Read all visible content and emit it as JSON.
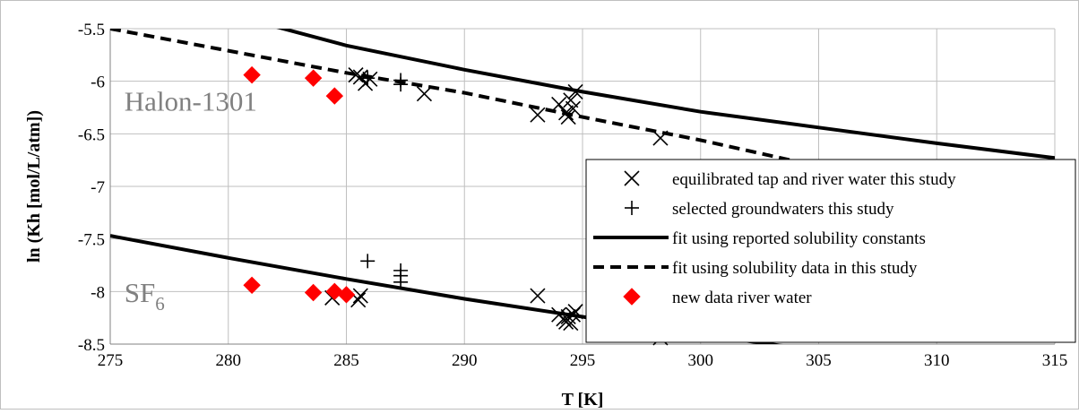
{
  "chart_data": {
    "type": "scatter",
    "xlabel": "T [K]",
    "ylabel": "ln (Kh [mol/L/atm])",
    "xlim": [
      275,
      315
    ],
    "ylim": [
      -8.5,
      -5.5
    ],
    "x_ticks": [
      275,
      280,
      285,
      290,
      295,
      300,
      305,
      310,
      315
    ],
    "y_ticks": [
      -5.5,
      -6,
      -6.5,
      -7,
      -7.5,
      -8,
      -8.5
    ],
    "grid": true,
    "legend_position": "right",
    "annotations": [
      {
        "id": "halon",
        "text": "Halon-1301",
        "x": 275.6,
        "y": -6.28
      },
      {
        "id": "sf6",
        "base": "SF",
        "sub": "6",
        "x": 275.6,
        "y": -8.1
      }
    ],
    "series": [
      {
        "id": "tap",
        "name": "equilibrated tap and river water this study",
        "marker": "x",
        "color": "#000000",
        "points": [
          [
            285.4,
            -5.94
          ],
          [
            285.6,
            -5.96
          ],
          [
            285.8,
            -6.02
          ],
          [
            286.0,
            -5.98
          ],
          [
            288.3,
            -6.12
          ],
          [
            293.1,
            -6.32
          ],
          [
            294.0,
            -6.22
          ],
          [
            294.3,
            -6.3
          ],
          [
            294.4,
            -6.34
          ],
          [
            294.5,
            -6.18
          ],
          [
            294.6,
            -6.26
          ],
          [
            294.7,
            -6.1
          ],
          [
            298.3,
            -6.54
          ],
          [
            284.4,
            -8.06
          ],
          [
            285.5,
            -8.08
          ],
          [
            285.6,
            -8.04
          ],
          [
            293.1,
            -8.04
          ],
          [
            294.0,
            -8.22
          ],
          [
            294.2,
            -8.26
          ],
          [
            294.3,
            -8.29
          ],
          [
            294.4,
            -8.24
          ],
          [
            294.5,
            -8.3
          ],
          [
            294.6,
            -8.22
          ],
          [
            294.7,
            -8.19
          ],
          [
            298.3,
            -8.44
          ]
        ]
      },
      {
        "id": "ground",
        "name": "selected groundwaters this study",
        "marker": "+",
        "color": "#000000",
        "points": [
          [
            285.9,
            -5.97
          ],
          [
            287.3,
            -5.99
          ],
          [
            287.3,
            -6.03
          ],
          [
            285.9,
            -7.71
          ],
          [
            287.3,
            -7.8
          ],
          [
            287.3,
            -7.85
          ],
          [
            287.3,
            -7.91
          ]
        ]
      },
      {
        "id": "fit_reported",
        "name": "fit using reported solubility constants",
        "line": "solid",
        "color": "#000000",
        "lines": [
          [
            [
              282,
              -5.48
            ],
            [
              285,
              -5.66
            ],
            [
              290,
              -5.89
            ],
            [
              295,
              -6.1
            ],
            [
              300,
              -6.29
            ],
            [
              305,
              -6.44
            ],
            [
              310,
              -6.59
            ],
            [
              315,
              -6.73
            ]
          ],
          [
            [
              275,
              -7.47
            ],
            [
              280,
              -7.68
            ],
            [
              285,
              -7.88
            ],
            [
              290,
              -8.07
            ],
            [
              295,
              -8.24
            ],
            [
              300,
              -8.41
            ],
            [
              303.9,
              -8.53
            ]
          ]
        ]
      },
      {
        "id": "fit_study",
        "name": "fit using solubility data in this study",
        "line": "dashed",
        "color": "#000000",
        "lines": [
          [
            [
              275,
              -5.5
            ],
            [
              280,
              -5.71
            ],
            [
              285,
              -5.92
            ],
            [
              290,
              -6.11
            ],
            [
              295,
              -6.34
            ],
            [
              300,
              -6.56
            ],
            [
              304,
              -6.76
            ]
          ]
        ]
      },
      {
        "id": "river",
        "name": "new data river water",
        "marker": "diamond",
        "color": "#ff0000",
        "points": [
          [
            281.0,
            -5.94
          ],
          [
            283.6,
            -5.97
          ],
          [
            284.5,
            -6.14
          ],
          [
            281.0,
            -7.94
          ],
          [
            283.6,
            -8.01
          ],
          [
            284.5,
            -8.0
          ],
          [
            285.0,
            -8.03
          ]
        ]
      }
    ]
  }
}
